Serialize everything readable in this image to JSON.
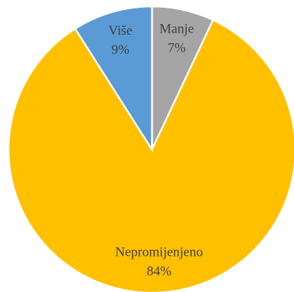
{
  "chart_data": {
    "type": "pie",
    "categories": [
      "Manje",
      "Nepromijenjeno",
      "Više"
    ],
    "values": [
      7,
      84,
      9
    ],
    "value_labels": [
      "7%",
      "84%",
      "9%"
    ],
    "colors": [
      "#a5a5a5",
      "#ffc000",
      "#5b9bd5"
    ]
  }
}
